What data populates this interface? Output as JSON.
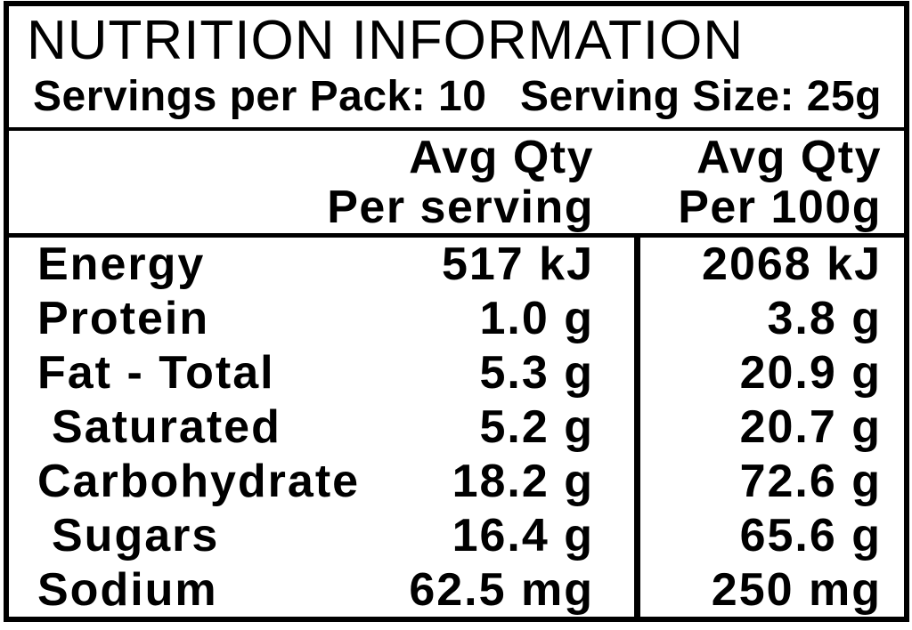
{
  "label_panel": {
    "title": "NUTRITION INFORMATION",
    "servings_per_pack": "Servings per Pack: 10",
    "serving_size": "Serving Size: 25g"
  },
  "table": {
    "columns": [
      {
        "line1": "Avg Qty",
        "line2": "Per serving"
      },
      {
        "line1": "Avg Qty",
        "line2": "Per 100g"
      }
    ],
    "rows": [
      {
        "label": "Energy",
        "per_serving": "517 kJ",
        "per_100g": "2068 kJ",
        "indent": false
      },
      {
        "label": "Protein",
        "per_serving": "1.0 g",
        "per_100g": "3.8 g",
        "indent": false
      },
      {
        "label": "Fat - Total",
        "per_serving": "5.3 g",
        "per_100g": "20.9 g",
        "indent": false
      },
      {
        "label": "Saturated",
        "per_serving": "5.2 g",
        "per_100g": "20.7 g",
        "indent": true
      },
      {
        "label": "Carbohydrate",
        "per_serving": "18.2 g",
        "per_100g": "72.6 g",
        "indent": false
      },
      {
        "label": "Sugars",
        "per_serving": "16.4 g",
        "per_100g": "65.6 g",
        "indent": true
      },
      {
        "label": "Sodium",
        "per_serving": "62.5 mg",
        "per_100g": "250 mg",
        "indent": false
      }
    ]
  },
  "colors": {
    "text": "#000000",
    "background": "#ffffff",
    "border": "#000000"
  }
}
